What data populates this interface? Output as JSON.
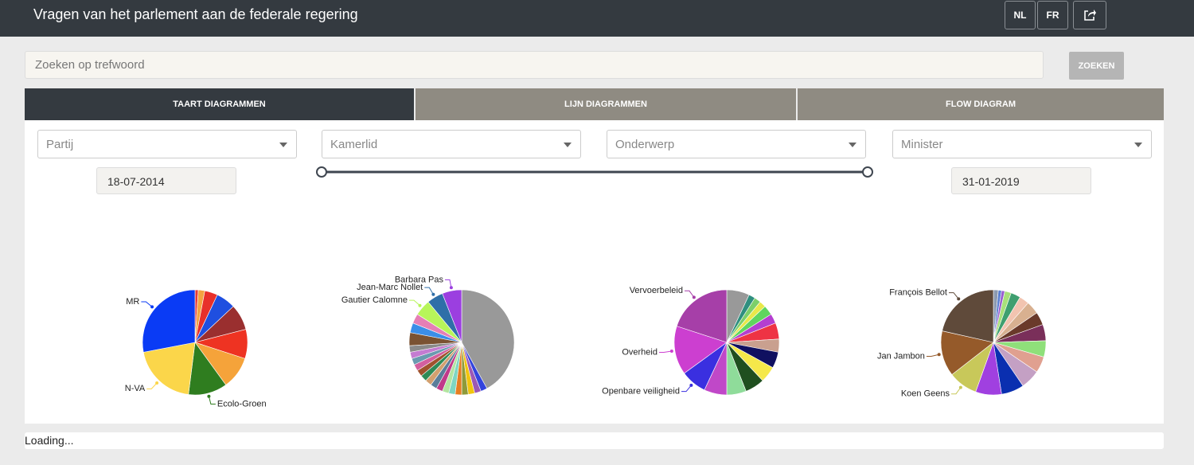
{
  "header": {
    "title": "Vragen van het parlement aan de federale regering",
    "languages": [
      "NL",
      "FR"
    ]
  },
  "search": {
    "placeholder": "Zoeken op trefwoord",
    "button": "ZOEKEN"
  },
  "tabs": [
    "TAART DIAGRAMMEN",
    "LIJN DIAGRAMMEN",
    "FLOW DIAGRAM"
  ],
  "filters": [
    "Partij",
    "Kamerlid",
    "Onderwerp",
    "Minister"
  ],
  "dates": {
    "start": "18-07-2014",
    "end": "31-01-2019"
  },
  "status": "Loading...",
  "chart_data": [
    {
      "type": "pie",
      "categories": [
        null,
        null,
        null,
        null,
        null,
        null,
        null,
        "Ecolo-Groen",
        "N-VA",
        "MR"
      ],
      "values": [
        1,
        2,
        4,
        6,
        8,
        9,
        10,
        12,
        20,
        28
      ],
      "colors": [
        "#e53935",
        "#f4a340",
        "#e8302a",
        "#1f4fe0",
        "#9a2f2f",
        "#ee3322",
        "#f5a33a",
        "#2f7d1f",
        "#fbd64a",
        "#0a3bf5"
      ]
    },
    {
      "type": "pie",
      "categories": [
        null,
        null,
        null,
        null,
        null,
        null,
        null,
        null,
        null,
        null,
        null,
        null,
        null,
        null,
        null,
        null,
        null,
        null,
        null,
        null,
        "Gautier Calomne",
        "Jean-Marc Nollet",
        "Barbara Pas"
      ],
      "values": [
        42,
        2,
        2,
        2,
        2,
        2,
        2,
        2,
        2,
        2,
        2,
        2,
        2,
        2,
        2,
        2,
        2,
        4,
        3,
        3,
        5,
        5,
        6
      ],
      "colors": [
        "#999999",
        "#3344dd",
        "#9b59b6",
        "#f1c40f",
        "#8e9a3a",
        "#e67e22",
        "#7fd6c2",
        "#b3e5a1",
        "#c0398a",
        "#5a7d9a",
        "#d3a06f",
        "#2e8b57",
        "#a0522d",
        "#d35f9f",
        "#6a9ab0",
        "#c47bd1",
        "#8a8a8a",
        "#7a5232",
        "#3b8ee8",
        "#e57fb5",
        "#b7f55a",
        "#2f6fa8",
        "#9b3fe0"
      ]
    },
    {
      "type": "pie",
      "categories": [
        null,
        null,
        null,
        null,
        null,
        null,
        null,
        null,
        null,
        null,
        null,
        null,
        null,
        "Openbare veiligheid",
        "Overheid",
        "Vervoerbeleid"
      ],
      "values": [
        7,
        2,
        2,
        2,
        3,
        3,
        5,
        4,
        5,
        5,
        6,
        6,
        7,
        8,
        15,
        20
      ],
      "colors": [
        "#999999",
        "#2f8f7f",
        "#7ccf6a",
        "#e8e84a",
        "#5fd65f",
        "#b43fd0",
        "#ee3344",
        "#c9a08f",
        "#101060",
        "#f5e84a",
        "#1f4f1f",
        "#8fdc9a",
        "#c048c8",
        "#3a2fe0",
        "#cc3fd0",
        "#a63fa8"
      ]
    },
    {
      "type": "pie",
      "categories": [
        null,
        null,
        null,
        null,
        null,
        null,
        null,
        null,
        null,
        null,
        null,
        null,
        null,
        null,
        "Koen Geens",
        "Jan Jambon",
        "François Bellot"
      ],
      "values": [
        1.5,
        1,
        1,
        2,
        3,
        3,
        4,
        4,
        5,
        5,
        5,
        6,
        7,
        8,
        9,
        14,
        21.5
      ],
      "colors": [
        "#8c9ab0",
        "#5a7fd0",
        "#9a5fd0",
        "#a8e07a",
        "#3f9f6f",
        "#f2c4b0",
        "#d8b090",
        "#6a3a2a",
        "#7a2f5a",
        "#8fe07a",
        "#e0a090",
        "#c4a0c4",
        "#0a2fb0",
        "#a040e0",
        "#c8c85a",
        "#955a2a",
        "#5f4a3a"
      ]
    }
  ]
}
